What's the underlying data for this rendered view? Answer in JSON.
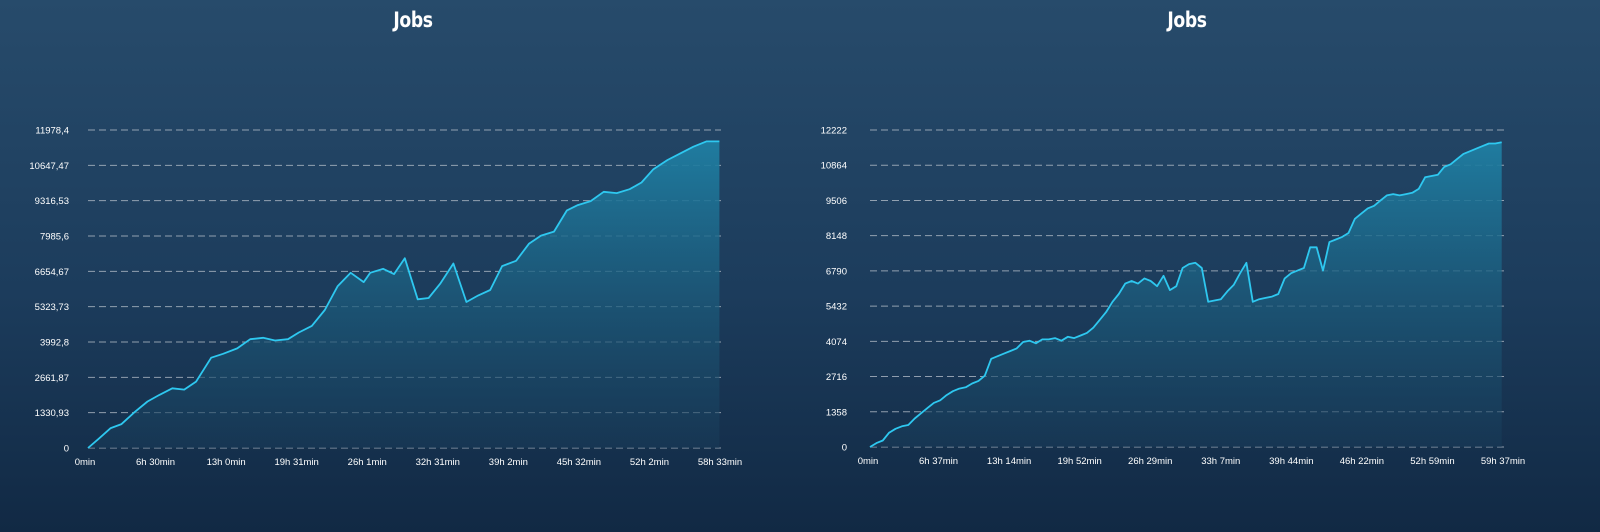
{
  "colors": {
    "line": "#2ec8f0",
    "area_top": "#1f7fa3",
    "area_bottom": "#183b58"
  },
  "chart_data": [
    {
      "type": "area",
      "title": "Jobs",
      "x_tick_labels": [
        "0min",
        "6h 30min",
        "13h 0min",
        "19h 31min",
        "26h 1min",
        "32h 31min",
        "39h 2min",
        "45h 32min",
        "52h 2min",
        "58h 33min"
      ],
      "y_tick_labels": [
        "0",
        "1330,93",
        "2661,87",
        "3992,8",
        "5323,73",
        "6654,67",
        "7985,6",
        "9316,53",
        "10647,47",
        "11978,4"
      ],
      "xlim_hours": [
        0,
        58.55
      ],
      "ylim": [
        0,
        11978.4
      ],
      "grid": true,
      "series": [
        {
          "x": [
            0,
            1.0,
            2.1,
            3.1,
            4.3,
            5.5,
            6.6,
            7.8,
            8.9,
            10.0,
            11.4,
            12.5,
            13.8,
            15.0,
            16.2,
            17.3,
            18.5,
            19.5,
            20.7,
            21.9,
            23.1,
            24.3,
            25.5,
            26.1,
            27.3,
            28.3,
            29.3,
            30.5,
            31.5,
            32.6,
            33.8,
            35.0,
            36.1,
            37.2,
            38.3,
            39.6,
            40.8,
            41.9,
            43.1,
            44.3,
            45.3,
            46.5,
            47.7,
            48.9,
            50.1,
            51.2,
            52.3,
            53.6,
            54.8,
            56.0,
            57.2,
            58.4
          ],
          "y": [
            0,
            350,
            750,
            900,
            1350,
            1750,
            2000,
            2250,
            2200,
            2500,
            3400,
            3550,
            3750,
            4100,
            4150,
            4050,
            4100,
            4350,
            4600,
            5200,
            6100,
            6600,
            6250,
            6600,
            6750,
            6550,
            7150,
            5600,
            5650,
            6200,
            6950,
            5500,
            5750,
            5950,
            6850,
            7050,
            7700,
            8000,
            8150,
            8950,
            9150,
            9300,
            9650,
            9600,
            9750,
            10000,
            10500,
            10850,
            11100,
            11350,
            11550,
            11550
          ]
        }
      ]
    },
    {
      "type": "area",
      "title": "Jobs",
      "x_tick_labels": [
        "0min",
        "6h 37min",
        "13h 14min",
        "19h 52min",
        "26h 29min",
        "33h 7min",
        "39h 44min",
        "46h 22min",
        "52h 59min",
        "59h 37min"
      ],
      "y_tick_labels": [
        "0",
        "1358",
        "2716",
        "4074",
        "5432",
        "6790",
        "8148",
        "9506",
        "10864",
        "12222"
      ],
      "xlim_hours": [
        0,
        59.62
      ],
      "ylim": [
        0,
        12222
      ],
      "grid": true,
      "series": [
        {
          "x": [
            0,
            0.6,
            1.2,
            1.8,
            2.4,
            3.0,
            3.6,
            4.2,
            4.8,
            5.4,
            6.0,
            6.6,
            7.2,
            7.8,
            8.4,
            9.0,
            9.6,
            10.2,
            10.8,
            11.4,
            12.0,
            12.6,
            13.2,
            13.8,
            14.4,
            15.0,
            15.6,
            16.2,
            16.8,
            17.4,
            18.0,
            18.6,
            19.2,
            19.8,
            20.4,
            21.0,
            21.6,
            22.2,
            22.8,
            23.4,
            24.0,
            24.6,
            25.2,
            25.8,
            26.4,
            27.0,
            27.6,
            28.2,
            28.8,
            29.4,
            30.0,
            30.6,
            31.2,
            31.8,
            32.4,
            33.0,
            33.6,
            34.2,
            34.8,
            35.4,
            36.0,
            36.6,
            37.2,
            37.8,
            38.4,
            39.0,
            39.6,
            40.2,
            40.8,
            41.4,
            42.0,
            42.6,
            43.2,
            43.8,
            44.4,
            45.0,
            45.6,
            46.2,
            46.8,
            47.4,
            48.0,
            48.6,
            49.2,
            49.8,
            50.4,
            51.0,
            51.6,
            52.2,
            52.8,
            53.4,
            54.0,
            54.6,
            55.2,
            55.8,
            56.4,
            57.0,
            57.6,
            58.2,
            58.8,
            59.4
          ],
          "y": [
            0,
            150,
            250,
            550,
            700,
            800,
            850,
            1100,
            1300,
            1500,
            1700,
            1800,
            2000,
            2150,
            2250,
            2300,
            2450,
            2550,
            2750,
            3400,
            3500,
            3600,
            3700,
            3800,
            4050,
            4100,
            4000,
            4150,
            4150,
            4200,
            4100,
            4250,
            4200,
            4300,
            4400,
            4600,
            4900,
            5200,
            5600,
            5900,
            6300,
            6400,
            6300,
            6500,
            6400,
            6200,
            6600,
            6050,
            6200,
            6900,
            7050,
            7100,
            6900,
            5600,
            5650,
            5700,
            6000,
            6250,
            6700,
            7100,
            5600,
            5700,
            5750,
            5800,
            5900,
            6500,
            6700,
            6800,
            6900,
            7700,
            7700,
            6800,
            7900,
            8000,
            8100,
            8250,
            8800,
            9000,
            9200,
            9300,
            9500,
            9700,
            9750,
            9700,
            9750,
            9800,
            9950,
            10400,
            10450,
            10500,
            10800,
            10900,
            11100,
            11300,
            11400,
            11500,
            11600,
            11700,
            11700,
            11750
          ]
        }
      ]
    }
  ]
}
